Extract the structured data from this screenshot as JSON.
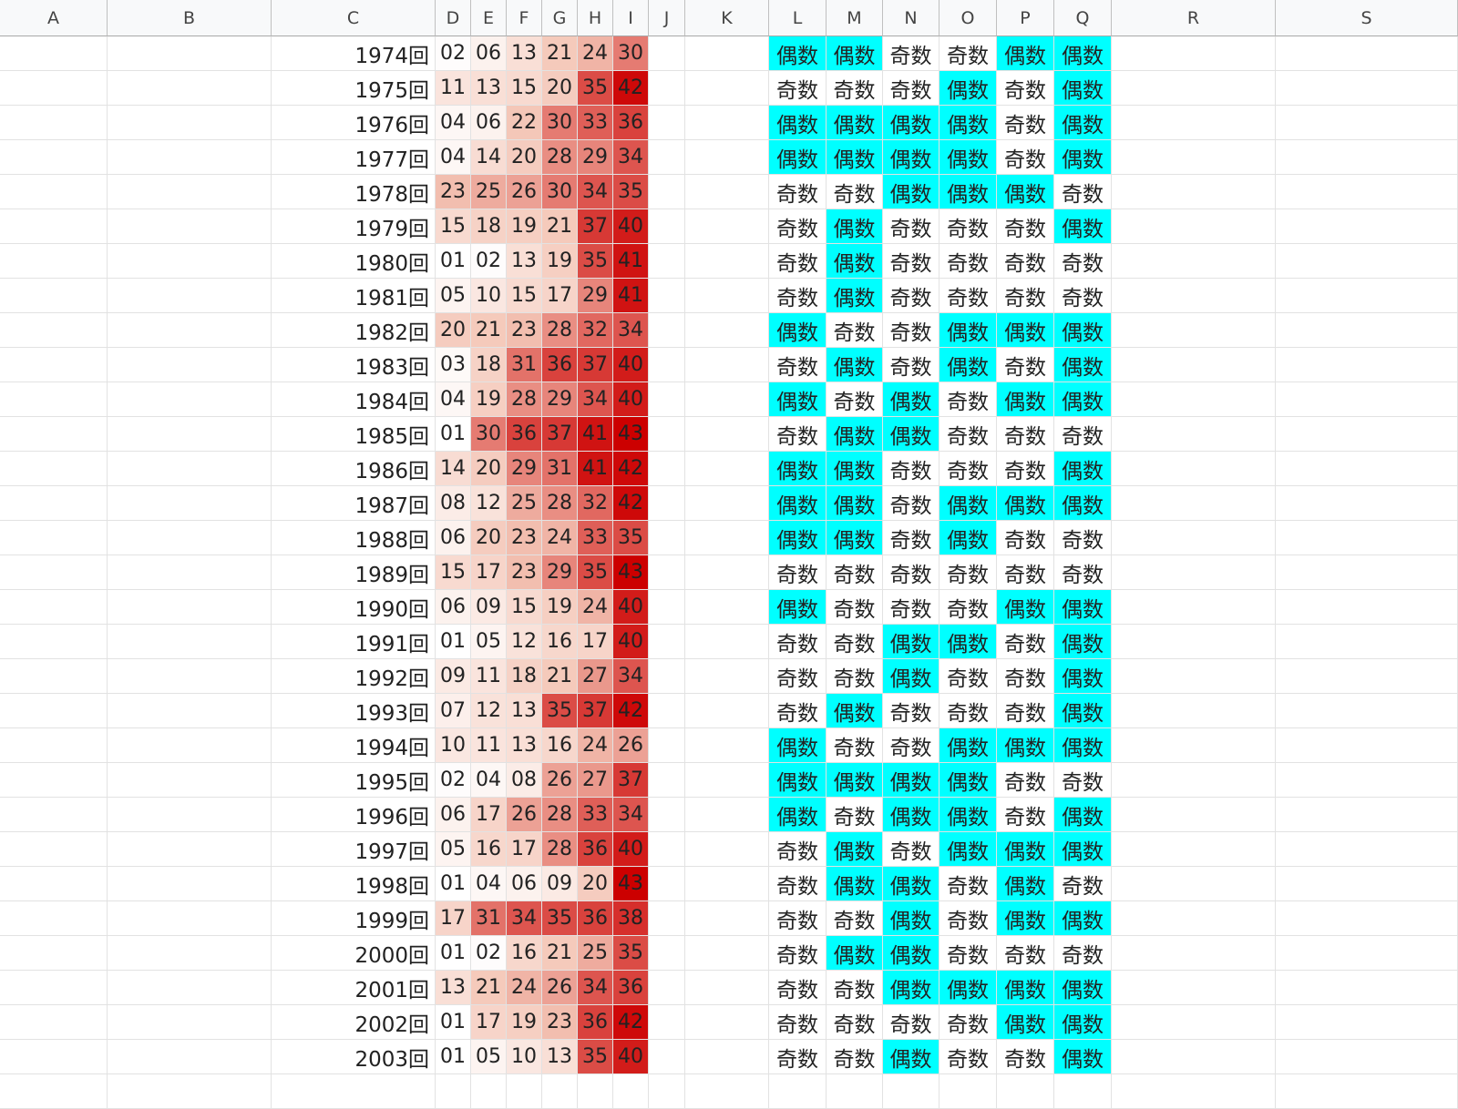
{
  "columns": [
    "A",
    "B",
    "C",
    "D",
    "E",
    "F",
    "G",
    "H",
    "I",
    "J",
    "K",
    "L",
    "M",
    "N",
    "O",
    "P",
    "Q",
    "R",
    "S"
  ],
  "rows": [
    {
      "label": "1974回",
      "nums": [
        "02",
        "06",
        "13",
        "21",
        "24",
        "30"
      ],
      "parity": [
        "偶数",
        "偶数",
        "奇数",
        "奇数",
        "偶数",
        "偶数"
      ]
    },
    {
      "label": "1975回",
      "nums": [
        "11",
        "13",
        "15",
        "20",
        "35",
        "42"
      ],
      "parity": [
        "奇数",
        "奇数",
        "奇数",
        "偶数",
        "奇数",
        "偶数"
      ]
    },
    {
      "label": "1976回",
      "nums": [
        "04",
        "06",
        "22",
        "30",
        "33",
        "36"
      ],
      "parity": [
        "偶数",
        "偶数",
        "偶数",
        "偶数",
        "奇数",
        "偶数"
      ]
    },
    {
      "label": "1977回",
      "nums": [
        "04",
        "14",
        "20",
        "28",
        "29",
        "34"
      ],
      "parity": [
        "偶数",
        "偶数",
        "偶数",
        "偶数",
        "奇数",
        "偶数"
      ]
    },
    {
      "label": "1978回",
      "nums": [
        "23",
        "25",
        "26",
        "30",
        "34",
        "35"
      ],
      "parity": [
        "奇数",
        "奇数",
        "偶数",
        "偶数",
        "偶数",
        "奇数"
      ]
    },
    {
      "label": "1979回",
      "nums": [
        "15",
        "18",
        "19",
        "21",
        "37",
        "40"
      ],
      "parity": [
        "奇数",
        "偶数",
        "奇数",
        "奇数",
        "奇数",
        "偶数"
      ]
    },
    {
      "label": "1980回",
      "nums": [
        "01",
        "02",
        "13",
        "19",
        "35",
        "41"
      ],
      "parity": [
        "奇数",
        "偶数",
        "奇数",
        "奇数",
        "奇数",
        "奇数"
      ]
    },
    {
      "label": "1981回",
      "nums": [
        "05",
        "10",
        "15",
        "17",
        "29",
        "41"
      ],
      "parity": [
        "奇数",
        "偶数",
        "奇数",
        "奇数",
        "奇数",
        "奇数"
      ]
    },
    {
      "label": "1982回",
      "nums": [
        "20",
        "21",
        "23",
        "28",
        "32",
        "34"
      ],
      "parity": [
        "偶数",
        "奇数",
        "奇数",
        "偶数",
        "偶数",
        "偶数"
      ]
    },
    {
      "label": "1983回",
      "nums": [
        "03",
        "18",
        "31",
        "36",
        "37",
        "40"
      ],
      "parity": [
        "奇数",
        "偶数",
        "奇数",
        "偶数",
        "奇数",
        "偶数"
      ]
    },
    {
      "label": "1984回",
      "nums": [
        "04",
        "19",
        "28",
        "29",
        "34",
        "40"
      ],
      "parity": [
        "偶数",
        "奇数",
        "偶数",
        "奇数",
        "偶数",
        "偶数"
      ]
    },
    {
      "label": "1985回",
      "nums": [
        "01",
        "30",
        "36",
        "37",
        "41",
        "43"
      ],
      "parity": [
        "奇数",
        "偶数",
        "偶数",
        "奇数",
        "奇数",
        "奇数"
      ]
    },
    {
      "label": "1986回",
      "nums": [
        "14",
        "20",
        "29",
        "31",
        "41",
        "42"
      ],
      "parity": [
        "偶数",
        "偶数",
        "奇数",
        "奇数",
        "奇数",
        "偶数"
      ]
    },
    {
      "label": "1987回",
      "nums": [
        "08",
        "12",
        "25",
        "28",
        "32",
        "42"
      ],
      "parity": [
        "偶数",
        "偶数",
        "奇数",
        "偶数",
        "偶数",
        "偶数"
      ]
    },
    {
      "label": "1988回",
      "nums": [
        "06",
        "20",
        "23",
        "24",
        "33",
        "35"
      ],
      "parity": [
        "偶数",
        "偶数",
        "奇数",
        "偶数",
        "奇数",
        "奇数"
      ]
    },
    {
      "label": "1989回",
      "nums": [
        "15",
        "17",
        "23",
        "29",
        "35",
        "43"
      ],
      "parity": [
        "奇数",
        "奇数",
        "奇数",
        "奇数",
        "奇数",
        "奇数"
      ]
    },
    {
      "label": "1990回",
      "nums": [
        "06",
        "09",
        "15",
        "19",
        "24",
        "40"
      ],
      "parity": [
        "偶数",
        "奇数",
        "奇数",
        "奇数",
        "偶数",
        "偶数"
      ]
    },
    {
      "label": "1991回",
      "nums": [
        "01",
        "05",
        "12",
        "16",
        "17",
        "40"
      ],
      "parity": [
        "奇数",
        "奇数",
        "偶数",
        "偶数",
        "奇数",
        "偶数"
      ]
    },
    {
      "label": "1992回",
      "nums": [
        "09",
        "11",
        "18",
        "21",
        "27",
        "34"
      ],
      "parity": [
        "奇数",
        "奇数",
        "偶数",
        "奇数",
        "奇数",
        "偶数"
      ]
    },
    {
      "label": "1993回",
      "nums": [
        "07",
        "12",
        "13",
        "35",
        "37",
        "42"
      ],
      "parity": [
        "奇数",
        "偶数",
        "奇数",
        "奇数",
        "奇数",
        "偶数"
      ]
    },
    {
      "label": "1994回",
      "nums": [
        "10",
        "11",
        "13",
        "16",
        "24",
        "26"
      ],
      "parity": [
        "偶数",
        "奇数",
        "奇数",
        "偶数",
        "偶数",
        "偶数"
      ]
    },
    {
      "label": "1995回",
      "nums": [
        "02",
        "04",
        "08",
        "26",
        "27",
        "37"
      ],
      "parity": [
        "偶数",
        "偶数",
        "偶数",
        "偶数",
        "奇数",
        "奇数"
      ]
    },
    {
      "label": "1996回",
      "nums": [
        "06",
        "17",
        "26",
        "28",
        "33",
        "34"
      ],
      "parity": [
        "偶数",
        "奇数",
        "偶数",
        "偶数",
        "奇数",
        "偶数"
      ]
    },
    {
      "label": "1997回",
      "nums": [
        "05",
        "16",
        "17",
        "28",
        "36",
        "40"
      ],
      "parity": [
        "奇数",
        "偶数",
        "奇数",
        "偶数",
        "偶数",
        "偶数"
      ]
    },
    {
      "label": "1998回",
      "nums": [
        "01",
        "04",
        "06",
        "09",
        "20",
        "43"
      ],
      "parity": [
        "奇数",
        "偶数",
        "偶数",
        "奇数",
        "偶数",
        "奇数"
      ]
    },
    {
      "label": "1999回",
      "nums": [
        "17",
        "31",
        "34",
        "35",
        "36",
        "38"
      ],
      "parity": [
        "奇数",
        "奇数",
        "偶数",
        "奇数",
        "偶数",
        "偶数"
      ]
    },
    {
      "label": "2000回",
      "nums": [
        "01",
        "02",
        "16",
        "21",
        "25",
        "35"
      ],
      "parity": [
        "奇数",
        "偶数",
        "偶数",
        "奇数",
        "奇数",
        "奇数"
      ]
    },
    {
      "label": "2001回",
      "nums": [
        "13",
        "21",
        "24",
        "26",
        "34",
        "36"
      ],
      "parity": [
        "奇数",
        "奇数",
        "偶数",
        "偶数",
        "偶数",
        "偶数"
      ]
    },
    {
      "label": "2002回",
      "nums": [
        "01",
        "17",
        "19",
        "23",
        "36",
        "42"
      ],
      "parity": [
        "奇数",
        "奇数",
        "奇数",
        "奇数",
        "偶数",
        "偶数"
      ]
    },
    {
      "label": "2003回",
      "nums": [
        "01",
        "05",
        "10",
        "13",
        "35",
        "40"
      ],
      "parity": [
        "奇数",
        "奇数",
        "偶数",
        "奇数",
        "奇数",
        "偶数"
      ]
    }
  ],
  "colors": {
    "even_fill": "#00ffff",
    "odd_fill": "#ffffff",
    "heat_low": "#ffffff",
    "heat_mid": "#f4c7b8",
    "heat_high": "#cc0000",
    "grid": "#e2e2e2",
    "header_bg": "#f8f9fa"
  },
  "heat_scale": {
    "min": 1,
    "max": 43
  }
}
